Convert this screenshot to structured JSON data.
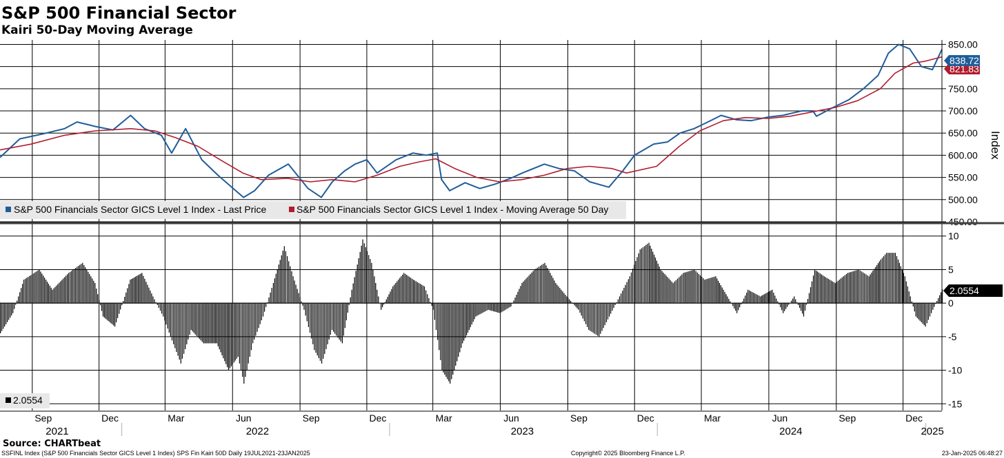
{
  "header": {
    "title": "S&P 500 Financial Sector",
    "subtitle": "Kairi 50-Day Moving Average"
  },
  "footer": {
    "source": "Source: CHARTbeat",
    "ticker_line": "SSFINL Index (S&P 500 Financials Sector GICS Level 1 Index) SPS Fin Kairi 50D  Daily 19JUL2021-23JAN2025",
    "copyright": "Copyright© 2025 Bloomberg Finance L.P.",
    "timestamp": "23-Jan-2025 06:48:27"
  },
  "colors": {
    "price": "#1f5d99",
    "moving_average": "#b01c2e",
    "kairi": "#000000",
    "grid": "#000000"
  },
  "chart_data": [
    {
      "type": "line",
      "panel": "upper",
      "ylabel": "Index",
      "ylim": [
        450,
        860
      ],
      "yticks": [
        "850.00",
        "800.00",
        "750.00",
        "700.00",
        "650.00",
        "600.00",
        "550.00",
        "500.00",
        "450.00"
      ],
      "grid": true,
      "legend_position": "bottom-left",
      "x_range": [
        "2021-07-19",
        "2025-01-23"
      ],
      "x_month_ticks": [
        "Sep",
        "Dec",
        "Mar",
        "Jun",
        "Sep",
        "Dec",
        "Mar",
        "Jun",
        "Sep",
        "Dec",
        "Mar",
        "Jun",
        "Sep",
        "Dec"
      ],
      "x_years": [
        "2021",
        "2022",
        "2023",
        "2024",
        "2025"
      ],
      "last_values": {
        "price": "838.72",
        "moving_average": "821.83"
      },
      "series": [
        {
          "name": "S&P 500 Financials Sector GICS Level 1 Index - Last Price",
          "color": "#1f5d99",
          "x": [
            "2021-07-19",
            "2021-08-15",
            "2021-09-15",
            "2021-10-15",
            "2021-11-01",
            "2021-11-26",
            "2021-12-20",
            "2022-01-13",
            "2022-02-01",
            "2022-02-24",
            "2022-03-10",
            "2022-03-29",
            "2022-04-20",
            "2022-05-12",
            "2022-06-02",
            "2022-06-16",
            "2022-07-01",
            "2022-07-20",
            "2022-08-16",
            "2022-09-12",
            "2022-09-30",
            "2022-10-15",
            "2022-11-01",
            "2022-11-15",
            "2022-12-01",
            "2022-12-15",
            "2023-01-10",
            "2023-02-02",
            "2023-02-20",
            "2023-03-07",
            "2023-03-13",
            "2023-03-24",
            "2023-04-14",
            "2023-05-04",
            "2023-05-25",
            "2023-06-15",
            "2023-07-01",
            "2023-07-31",
            "2023-08-20",
            "2023-09-10",
            "2023-10-01",
            "2023-10-27",
            "2023-11-15",
            "2023-12-01",
            "2023-12-27",
            "2024-01-15",
            "2024-02-01",
            "2024-02-20",
            "2024-03-10",
            "2024-03-28",
            "2024-04-18",
            "2024-05-08",
            "2024-05-31",
            "2024-06-20",
            "2024-07-16",
            "2024-07-31",
            "2024-08-05",
            "2024-08-28",
            "2024-09-18",
            "2024-10-08",
            "2024-10-28",
            "2024-11-11",
            "2024-11-25",
            "2024-12-10",
            "2024-12-26",
            "2025-01-10",
            "2025-01-23"
          ],
          "values": [
            595,
            637,
            648,
            660,
            675,
            665,
            657,
            690,
            660,
            645,
            605,
            660,
            590,
            555,
            525,
            505,
            520,
            555,
            580,
            525,
            505,
            540,
            565,
            580,
            590,
            560,
            590,
            605,
            600,
            605,
            545,
            520,
            538,
            525,
            535,
            548,
            560,
            580,
            570,
            565,
            540,
            528,
            565,
            600,
            625,
            630,
            650,
            660,
            675,
            690,
            680,
            678,
            686,
            690,
            700,
            700,
            688,
            708,
            725,
            750,
            780,
            830,
            850,
            840,
            800,
            793,
            838.72
          ]
        },
        {
          "name": "S&P 500 Financials Sector GICS Level 1 Index - Moving Average 50 Day",
          "color": "#b01c2e",
          "x": [
            "2021-07-19",
            "2021-08-30",
            "2021-10-15",
            "2021-11-26",
            "2022-01-13",
            "2022-02-15",
            "2022-03-15",
            "2022-04-15",
            "2022-05-15",
            "2022-06-15",
            "2022-07-10",
            "2022-08-15",
            "2022-09-15",
            "2022-10-15",
            "2022-11-15",
            "2022-12-15",
            "2023-01-15",
            "2023-02-10",
            "2023-03-05",
            "2023-03-31",
            "2023-04-30",
            "2023-05-31",
            "2023-06-30",
            "2023-07-31",
            "2023-08-31",
            "2023-09-30",
            "2023-10-31",
            "2023-11-20",
            "2023-12-31",
            "2024-01-31",
            "2024-02-28",
            "2024-03-31",
            "2024-04-30",
            "2024-05-31",
            "2024-06-30",
            "2024-07-31",
            "2024-08-31",
            "2024-09-30",
            "2024-10-31",
            "2024-11-20",
            "2024-12-15",
            "2024-12-31",
            "2025-01-23"
          ],
          "values": [
            612,
            625,
            645,
            655,
            660,
            655,
            640,
            620,
            590,
            560,
            545,
            548,
            540,
            545,
            540,
            555,
            575,
            585,
            592,
            570,
            550,
            540,
            545,
            555,
            570,
            575,
            570,
            560,
            575,
            620,
            655,
            678,
            685,
            683,
            688,
            698,
            708,
            723,
            750,
            785,
            808,
            812,
            821.83
          ]
        }
      ]
    },
    {
      "type": "bar",
      "panel": "lower",
      "ylim": [
        -16,
        11
      ],
      "yticks": [
        "10",
        "5",
        "0",
        "-5",
        "-10",
        "-15"
      ],
      "grid": true,
      "last_value": "2.0554",
      "legend_label": "2.0554",
      "series": [
        {
          "name": "",
          "color": "#000000",
          "x": [
            "2021-07-19",
            "2021-08-05",
            "2021-08-20",
            "2021-09-10",
            "2021-09-28",
            "2021-10-20",
            "2021-11-08",
            "2021-11-25",
            "2021-12-06",
            "2021-12-22",
            "2022-01-12",
            "2022-01-28",
            "2022-02-12",
            "2022-02-26",
            "2022-03-08",
            "2022-03-22",
            "2022-04-05",
            "2022-04-22",
            "2022-05-10",
            "2022-05-26",
            "2022-06-08",
            "2022-06-16",
            "2022-06-28",
            "2022-07-12",
            "2022-07-26",
            "2022-08-10",
            "2022-08-22",
            "2022-09-06",
            "2022-09-20",
            "2022-09-30",
            "2022-10-14",
            "2022-10-28",
            "2022-11-10",
            "2022-11-25",
            "2022-12-07",
            "2022-12-20",
            "2023-01-05",
            "2023-01-20",
            "2023-02-02",
            "2023-02-17",
            "2023-03-01",
            "2023-03-13",
            "2023-03-24",
            "2023-04-10",
            "2023-04-28",
            "2023-05-15",
            "2023-05-31",
            "2023-06-15",
            "2023-06-30",
            "2023-07-17",
            "2023-07-31",
            "2023-08-15",
            "2023-08-30",
            "2023-09-15",
            "2023-09-29",
            "2023-10-13",
            "2023-10-27",
            "2023-11-10",
            "2023-11-24",
            "2023-12-08",
            "2023-12-20",
            "2024-01-05",
            "2024-01-22",
            "2024-02-05",
            "2024-02-20",
            "2024-03-05",
            "2024-03-20",
            "2024-04-05",
            "2024-04-18",
            "2024-05-03",
            "2024-05-20",
            "2024-06-05",
            "2024-06-20",
            "2024-07-05",
            "2024-07-18",
            "2024-08-02",
            "2024-08-15",
            "2024-08-30",
            "2024-09-16",
            "2024-10-01",
            "2024-10-15",
            "2024-10-31",
            "2024-11-08",
            "2024-11-20",
            "2024-12-03",
            "2024-12-18",
            "2024-12-31",
            "2025-01-10",
            "2025-01-23"
          ],
          "values": [
            -4.5,
            -1.5,
            3.5,
            5,
            2,
            4.5,
            6,
            3,
            -2,
            -3.5,
            3.5,
            4.5,
            1,
            -2,
            -5,
            -9,
            -4,
            -6,
            -6,
            -10,
            -8,
            -12,
            -6,
            -2,
            3,
            8.5,
            4,
            -1,
            -7,
            -9,
            -4,
            -6,
            2,
            9.5,
            6,
            -1,
            2.5,
            4.5,
            3.5,
            2.5,
            -1,
            -10,
            -12,
            -6,
            -2,
            -1,
            -1.5,
            -0.5,
            3,
            5,
            6,
            3,
            1,
            -1,
            -4,
            -5,
            -2,
            1,
            4,
            8,
            9,
            5,
            3,
            4.5,
            5,
            3.5,
            4,
            1,
            -1.5,
            2,
            1,
            2,
            -1.5,
            1,
            -2,
            5,
            4,
            3,
            4.5,
            5,
            4,
            6.5,
            7.5,
            7.5,
            4,
            -2,
            -3.5,
            -1,
            2.0554
          ]
        }
      ]
    }
  ]
}
